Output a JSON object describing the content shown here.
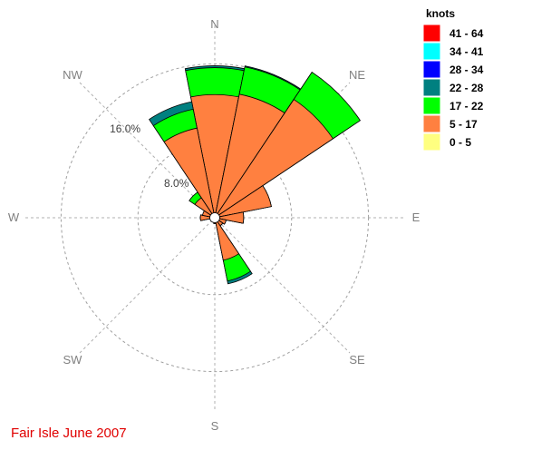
{
  "chart_data": {
    "type": "wind-rose",
    "title": "Fair Isle June 2007",
    "units_label": "knots",
    "directions": [
      "N",
      "NNE",
      "NE",
      "ENE",
      "E",
      "ESE",
      "SE",
      "SSE",
      "S",
      "SSW",
      "SW",
      "WSW",
      "W",
      "WNW",
      "NW",
      "NNW"
    ],
    "compass_labels": [
      "N",
      "NE",
      "E",
      "SE",
      "S",
      "SW",
      "W",
      "NW"
    ],
    "rings": [
      {
        "percent": 8.0,
        "label": "8.0%"
      },
      {
        "percent": 16.0,
        "label": "16.0%"
      }
    ],
    "speed_bins": [
      {
        "label": "41 - 64",
        "color": "#ff0000"
      },
      {
        "label": "34 - 41",
        "color": "#00ffff"
      },
      {
        "label": "28 - 34",
        "color": "#0000ff"
      },
      {
        "label": "22 - 28",
        "color": "#008080"
      },
      {
        "label": "17 - 22",
        "color": "#00ff00"
      },
      {
        "label": "5 - 17",
        "color": "#ff8040"
      },
      {
        "label": "0 - 5",
        "color": "#ffff80"
      }
    ],
    "series_note": "cumulative percent frequency per direction, bins ordered 0-5, 5-17, 17-22, 22-28",
    "frequencies": [
      {
        "dir": "N",
        "cum": [
          0.3,
          12.8,
          15.6,
          15.8
        ]
      },
      {
        "dir": "NNE",
        "cum": [
          0.3,
          13.1,
          16.0,
          16.1
        ]
      },
      {
        "dir": "NE",
        "cum": [
          0.3,
          14.8,
          18.2,
          18.2
        ]
      },
      {
        "dir": "ENE",
        "cum": [
          0.3,
          6.0,
          6.0,
          6.0
        ]
      },
      {
        "dir": "E",
        "cum": [
          0.4,
          3.0,
          3.0,
          3.0
        ]
      },
      {
        "dir": "ESE",
        "cum": [
          0.3,
          1.2,
          1.2,
          1.2
        ]
      },
      {
        "dir": "SE",
        "cum": [
          0.3,
          1.0,
          1.0,
          1.0
        ]
      },
      {
        "dir": "SSE",
        "cum": [
          0.3,
          4.5,
          6.7,
          7.0
        ]
      },
      {
        "dir": "S",
        "cum": [
          0.2,
          0.6,
          0.6,
          0.6
        ]
      },
      {
        "dir": "SSW",
        "cum": [
          0.2,
          0.5,
          0.5,
          0.5
        ]
      },
      {
        "dir": "SW",
        "cum": [
          0.2,
          0.4,
          0.4,
          0.4
        ]
      },
      {
        "dir": "WSW",
        "cum": [
          0.2,
          0.5,
          0.5,
          0.5
        ]
      },
      {
        "dir": "W",
        "cum": [
          0.3,
          1.5,
          1.5,
          1.5
        ]
      },
      {
        "dir": "WNW",
        "cum": [
          0.3,
          1.3,
          1.3,
          1.3
        ]
      },
      {
        "dir": "NW",
        "cum": [
          0.3,
          2.5,
          3.2,
          3.2
        ]
      },
      {
        "dir": "NNW",
        "cum": [
          0.3,
          9.5,
          11.5,
          12.3
        ]
      }
    ]
  }
}
